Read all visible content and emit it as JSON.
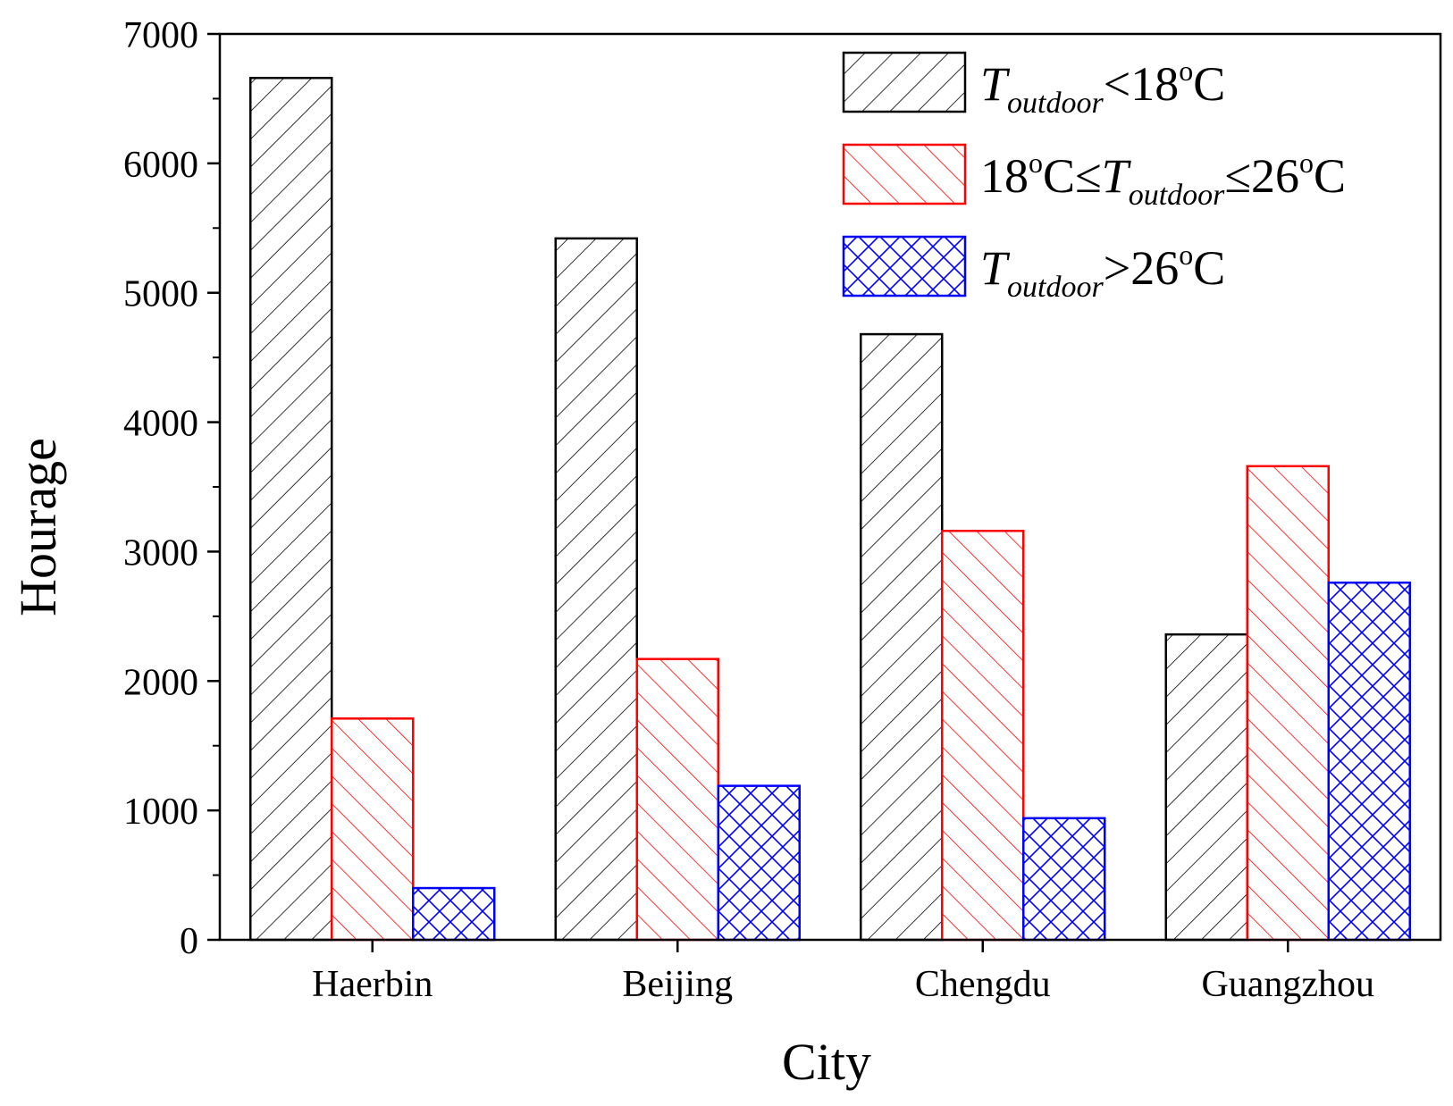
{
  "chart_data": {
    "type": "bar",
    "title": "",
    "xlabel": "City",
    "ylabel": "Hourage",
    "ylim": [
      0,
      7000
    ],
    "yticks": [
      0,
      1000,
      2000,
      3000,
      4000,
      5000,
      6000,
      7000
    ],
    "categories": [
      "Haerbin",
      "Beijing",
      "Chengdu",
      "Guangzhou"
    ],
    "series": [
      {
        "name": "T outdoor <18oC",
        "legend": {
          "main": "T",
          "sub": "outdoor",
          "rest": "<18",
          "sup": "o",
          "end": "C"
        },
        "color": "#000000",
        "pattern": "forward-hatch",
        "values": [
          6660,
          5420,
          4680,
          2360
        ]
      },
      {
        "name": "18oC≤T outdoor ≤26oC",
        "legend": {
          "pre": "18",
          "pre_sup": "o",
          "pre_end": "C≤",
          "main": "T",
          "sub": "outdoor",
          "rest": "≤26",
          "sup": "o",
          "end": "C"
        },
        "color": "#ff0000",
        "pattern": "back-hatch",
        "values": [
          1710,
          2170,
          3160,
          3660
        ]
      },
      {
        "name": "T outdoor >26oC",
        "legend": {
          "main": "T",
          "sub": "outdoor",
          "rest": ">26",
          "sup": "o",
          "end": "C"
        },
        "color": "#0000ff",
        "pattern": "cross-hatch",
        "values": [
          400,
          1190,
          940,
          2760
        ]
      }
    ],
    "legend_position": "top-right"
  }
}
